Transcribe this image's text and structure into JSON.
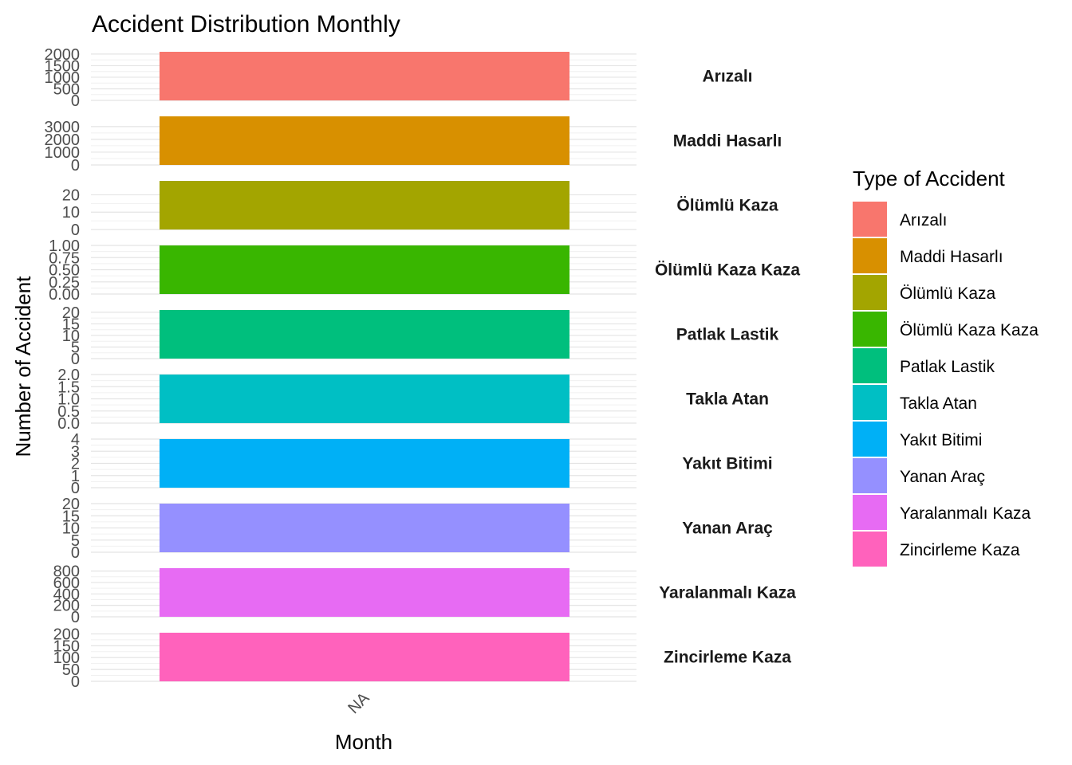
{
  "chart_data": {
    "type": "bar",
    "title": "Accident Distribution Monthly",
    "xlabel": "Month",
    "ylabel": "Number of Accident",
    "categories": [
      "NA"
    ],
    "legend": {
      "title": "Type of Accident",
      "position": "right"
    },
    "grid": true,
    "panels": [
      {
        "name": "Arızalı",
        "color": "#F8766D",
        "value": 2100,
        "ylim": [
          0,
          2100
        ],
        "ticks": [
          0,
          500,
          1000,
          1500,
          2000
        ],
        "tick_labels": [
          "0",
          "500",
          "1000",
          "1500",
          "2000"
        ]
      },
      {
        "name": "Maddi Hasarlı",
        "color": "#D89000",
        "value": 3800,
        "ylim": [
          0,
          3800
        ],
        "ticks": [
          0,
          1000,
          2000,
          3000
        ],
        "tick_labels": [
          "0",
          "1000",
          "2000",
          "3000"
        ]
      },
      {
        "name": "Ölümlü Kaza",
        "color": "#A3A500",
        "value": 28,
        "ylim": [
          0,
          28
        ],
        "ticks": [
          0,
          10,
          20
        ],
        "tick_labels": [
          "0",
          "10",
          "20"
        ]
      },
      {
        "name": "Ölümlü Kaza Kaza",
        "color": "#39B600",
        "value": 1,
        "ylim": [
          0,
          1
        ],
        "ticks": [
          0,
          0.25,
          0.5,
          0.75,
          1
        ],
        "tick_labels": [
          "0.00",
          "0.25",
          "0.50",
          "0.75",
          "1.00"
        ]
      },
      {
        "name": "Patlak Lastik",
        "color": "#00BF7D",
        "value": 21,
        "ylim": [
          0,
          21
        ],
        "ticks": [
          0,
          5,
          10,
          15,
          20
        ],
        "tick_labels": [
          "0",
          "5",
          "10",
          "15",
          "20"
        ]
      },
      {
        "name": "Takla Atan",
        "color": "#00BFC4",
        "value": 2,
        "ylim": [
          0,
          2
        ],
        "ticks": [
          0,
          0.5,
          1,
          1.5,
          2
        ],
        "tick_labels": [
          "0.0",
          "0.5",
          "1.0",
          "1.5",
          "2.0"
        ]
      },
      {
        "name": "Yakıt Bitimi",
        "color": "#00B0F6",
        "value": 4,
        "ylim": [
          0,
          4
        ],
        "ticks": [
          0,
          1,
          2,
          3,
          4
        ],
        "tick_labels": [
          "0",
          "1",
          "2",
          "3",
          "4"
        ]
      },
      {
        "name": "Yanan Araç",
        "color": "#9590FF",
        "value": 20,
        "ylim": [
          0,
          20
        ],
        "ticks": [
          0,
          5,
          10,
          15,
          20
        ],
        "tick_labels": [
          "0",
          "5",
          "10",
          "15",
          "20"
        ]
      },
      {
        "name": "Yaralanmalı Kaza",
        "color": "#E76BF3",
        "value": 850,
        "ylim": [
          0,
          850
        ],
        "ticks": [
          0,
          200,
          400,
          600,
          800
        ],
        "tick_labels": [
          "0",
          "200",
          "400",
          "600",
          "800"
        ]
      },
      {
        "name": "Zincirleme Kaza",
        "color": "#FF62BC",
        "value": 205,
        "ylim": [
          0,
          205
        ],
        "ticks": [
          0,
          50,
          100,
          150,
          200
        ],
        "tick_labels": [
          "0",
          "50",
          "100",
          "150",
          "200"
        ]
      }
    ]
  }
}
